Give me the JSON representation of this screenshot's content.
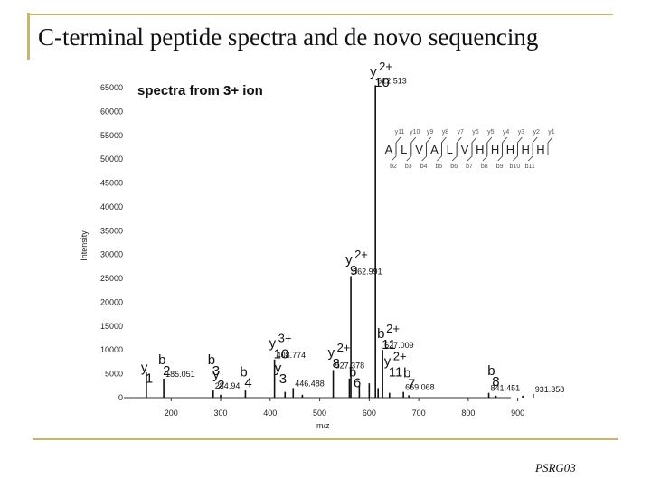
{
  "slide": {
    "title": "C-terminal peptide spectra and de novo sequencing",
    "footer": "PSRG03"
  },
  "chart_data": {
    "type": "bar",
    "title": "spectra from 3+ ion",
    "xlabel": "m/z",
    "ylabel": "Intensity",
    "xlim": [
      110,
      950
    ],
    "ylim": [
      0,
      65000
    ],
    "x_ticks": [
      200,
      300,
      400,
      500,
      600,
      700,
      800,
      900
    ],
    "y_ticks": [
      0,
      5000,
      10000,
      15000,
      20000,
      25000,
      30000,
      35000,
      40000,
      45000,
      50000,
      55000,
      60000,
      65000
    ],
    "peaks": [
      {
        "mz": 612.513,
        "intensity": 65500,
        "label": "612.513"
      },
      {
        "mz": 562.991,
        "intensity": 25500,
        "label": "562.991"
      },
      {
        "mz": 627.009,
        "intensity": 10000,
        "label": "627.009"
      },
      {
        "mz": 408.774,
        "intensity": 8000,
        "label": "408.774"
      },
      {
        "mz": 527.378,
        "intensity": 5800,
        "label": "527.378"
      },
      {
        "mz": 185.051,
        "intensity": 4000,
        "label": "185.051"
      },
      {
        "mz": 284.94,
        "intensity": 1500,
        "label": "284.94"
      },
      {
        "mz": 446.488,
        "intensity": 2000,
        "label": "446.488"
      },
      {
        "mz": 669.068,
        "intensity": 1200,
        "label": "669.068"
      },
      {
        "mz": 841.451,
        "intensity": 1000,
        "label": "841.451"
      },
      {
        "mz": 931.358,
        "intensity": 800,
        "label": "931.358"
      },
      {
        "mz": 150,
        "intensity": 5300,
        "label": ""
      },
      {
        "mz": 300,
        "intensity": 600,
        "label": ""
      },
      {
        "mz": 350,
        "intensity": 1500,
        "label": ""
      },
      {
        "mz": 430,
        "intensity": 1200,
        "label": ""
      },
      {
        "mz": 465,
        "intensity": 600,
        "label": ""
      },
      {
        "mz": 560,
        "intensity": 4000,
        "label": ""
      },
      {
        "mz": 580,
        "intensity": 2500,
        "label": ""
      },
      {
        "mz": 600,
        "intensity": 3000,
        "label": ""
      },
      {
        "mz": 618,
        "intensity": 2000,
        "label": ""
      },
      {
        "mz": 641,
        "intensity": 1000,
        "label": ""
      },
      {
        "mz": 680,
        "intensity": 500,
        "label": ""
      },
      {
        "mz": 856,
        "intensity": 400,
        "label": ""
      },
      {
        "mz": 910,
        "intensity": 400,
        "label": ""
      }
    ],
    "ion_annotations": [
      {
        "ion": "y",
        "index": "10",
        "charge": "2+",
        "mz": 612.513,
        "intensity": 67500
      },
      {
        "ion": "y",
        "index": "9",
        "charge": "2+",
        "mz": 562.991,
        "intensity": 28000
      },
      {
        "ion": "y",
        "index": "10",
        "charge": "3+",
        "mz": 408.774,
        "intensity": 10500
      },
      {
        "ion": "b",
        "index": "11",
        "charge": "2+",
        "mz": 627.009,
        "intensity": 12500
      },
      {
        "ion": "y",
        "index": "8",
        "charge": "2+",
        "mz": 527.378,
        "intensity": 8500
      },
      {
        "ion": "b",
        "index": "2",
        "charge": "",
        "mz": 185.051,
        "intensity": 7000
      },
      {
        "ion": "b",
        "index": "3",
        "charge": "",
        "mz": 284.94,
        "intensity": 7000
      },
      {
        "ion": "y",
        "index": "1",
        "charge": "",
        "mz": 150,
        "intensity": 5400
      },
      {
        "ion": "y",
        "index": "2",
        "charge": "",
        "mz": 295,
        "intensity": 4000
      },
      {
        "ion": "b",
        "index": "4",
        "charge": "",
        "mz": 350,
        "intensity": 4500
      },
      {
        "ion": "y",
        "index": "3",
        "charge": "",
        "mz": 420,
        "intensity": 5300
      },
      {
        "ion": "b",
        "index": "6",
        "charge": "",
        "mz": 570,
        "intensity": 4500
      },
      {
        "ion": "y",
        "index": "11",
        "charge": "2+",
        "mz": 641,
        "intensity": 6700
      },
      {
        "ion": "b",
        "index": "7",
        "charge": "",
        "mz": 680,
        "intensity": 4300
      },
      {
        "ion": "b",
        "index": "8",
        "charge": "",
        "mz": 850,
        "intensity": 4700
      }
    ],
    "sequence": {
      "residues": [
        "A",
        "L",
        "V",
        "A",
        "L",
        "V",
        "H",
        "H",
        "H",
        "H",
        "H"
      ],
      "y_ions": [
        "y11",
        "y10",
        "y9",
        "y8",
        "y7",
        "y6",
        "y5",
        "y4",
        "y3",
        "y2",
        "y1"
      ],
      "b_ions": [
        "b2",
        "b3",
        "b4",
        "b5",
        "b6",
        "b7",
        "b8",
        "b9",
        "b10",
        "b11"
      ]
    },
    "colors": {
      "peaks": "#111111",
      "axis": "#333333",
      "annotation": "#111111",
      "fragment": "#555555"
    }
  }
}
